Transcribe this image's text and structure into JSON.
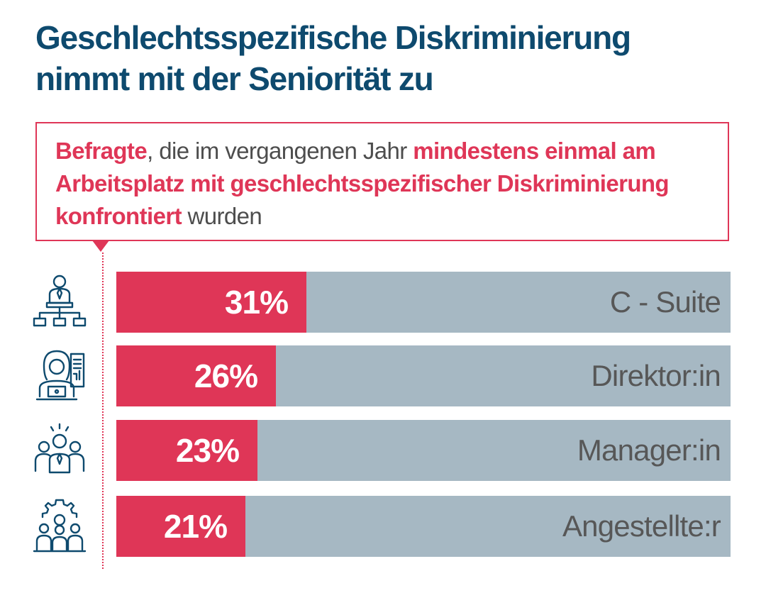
{
  "title": {
    "line1": "Geschlechtsspezifische Diskriminierung",
    "line2": "nimmt mit der Seniorität zu"
  },
  "callout": {
    "part1": "Befragte",
    "part2": ", die im vergangenen Jahr ",
    "part3": "mindestens einmal am Arbeitsplatz mit geschlechtsspezifischer Diskriminierung konfrontiert",
    "part4": " wurden"
  },
  "colors": {
    "title": "#0e4a6e",
    "accent": "#df3657",
    "track": "#a6b8c3",
    "icon": "#0e4a6e"
  },
  "chart_data": {
    "type": "bar",
    "orientation": "horizontal",
    "categories": [
      "C - Suite",
      "Direktor:in",
      "Manager:in",
      "Angestellte:r"
    ],
    "values": [
      31,
      26,
      23,
      21
    ],
    "value_labels": [
      "31%",
      "26%",
      "23%",
      "21%"
    ],
    "icons": [
      "executive-hierarchy-icon",
      "director-woman-icon",
      "manager-team-icon",
      "employees-gear-icon"
    ],
    "unit": "%",
    "xlim": [
      0,
      100
    ],
    "grid": false
  }
}
